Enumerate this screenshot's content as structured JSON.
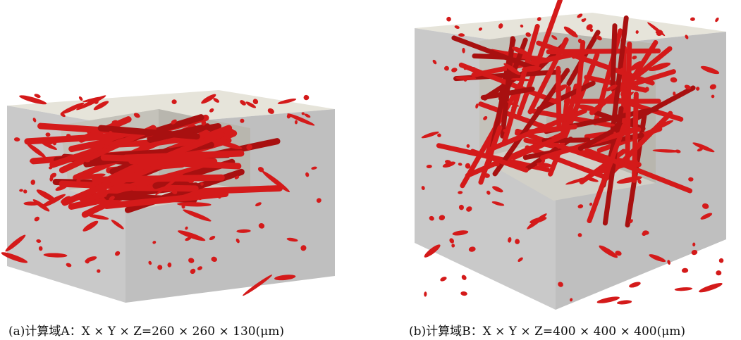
{
  "figure": {
    "panels": [
      {
        "id": "a",
        "caption": "(a)计算域A：X × Y × Z=260 × 260 × 130(μm)"
      },
      {
        "id": "b",
        "caption": "(b)计算域B：X × Y × Z=400 × 400 × 400(μm)"
      }
    ],
    "colors": {
      "fiber": "#d41a1a",
      "box_front": "#c8c8c8",
      "box_side": "#bdbdbd",
      "box_top": "#e6e4da",
      "cut_inner": "#d2d0c8"
    }
  }
}
